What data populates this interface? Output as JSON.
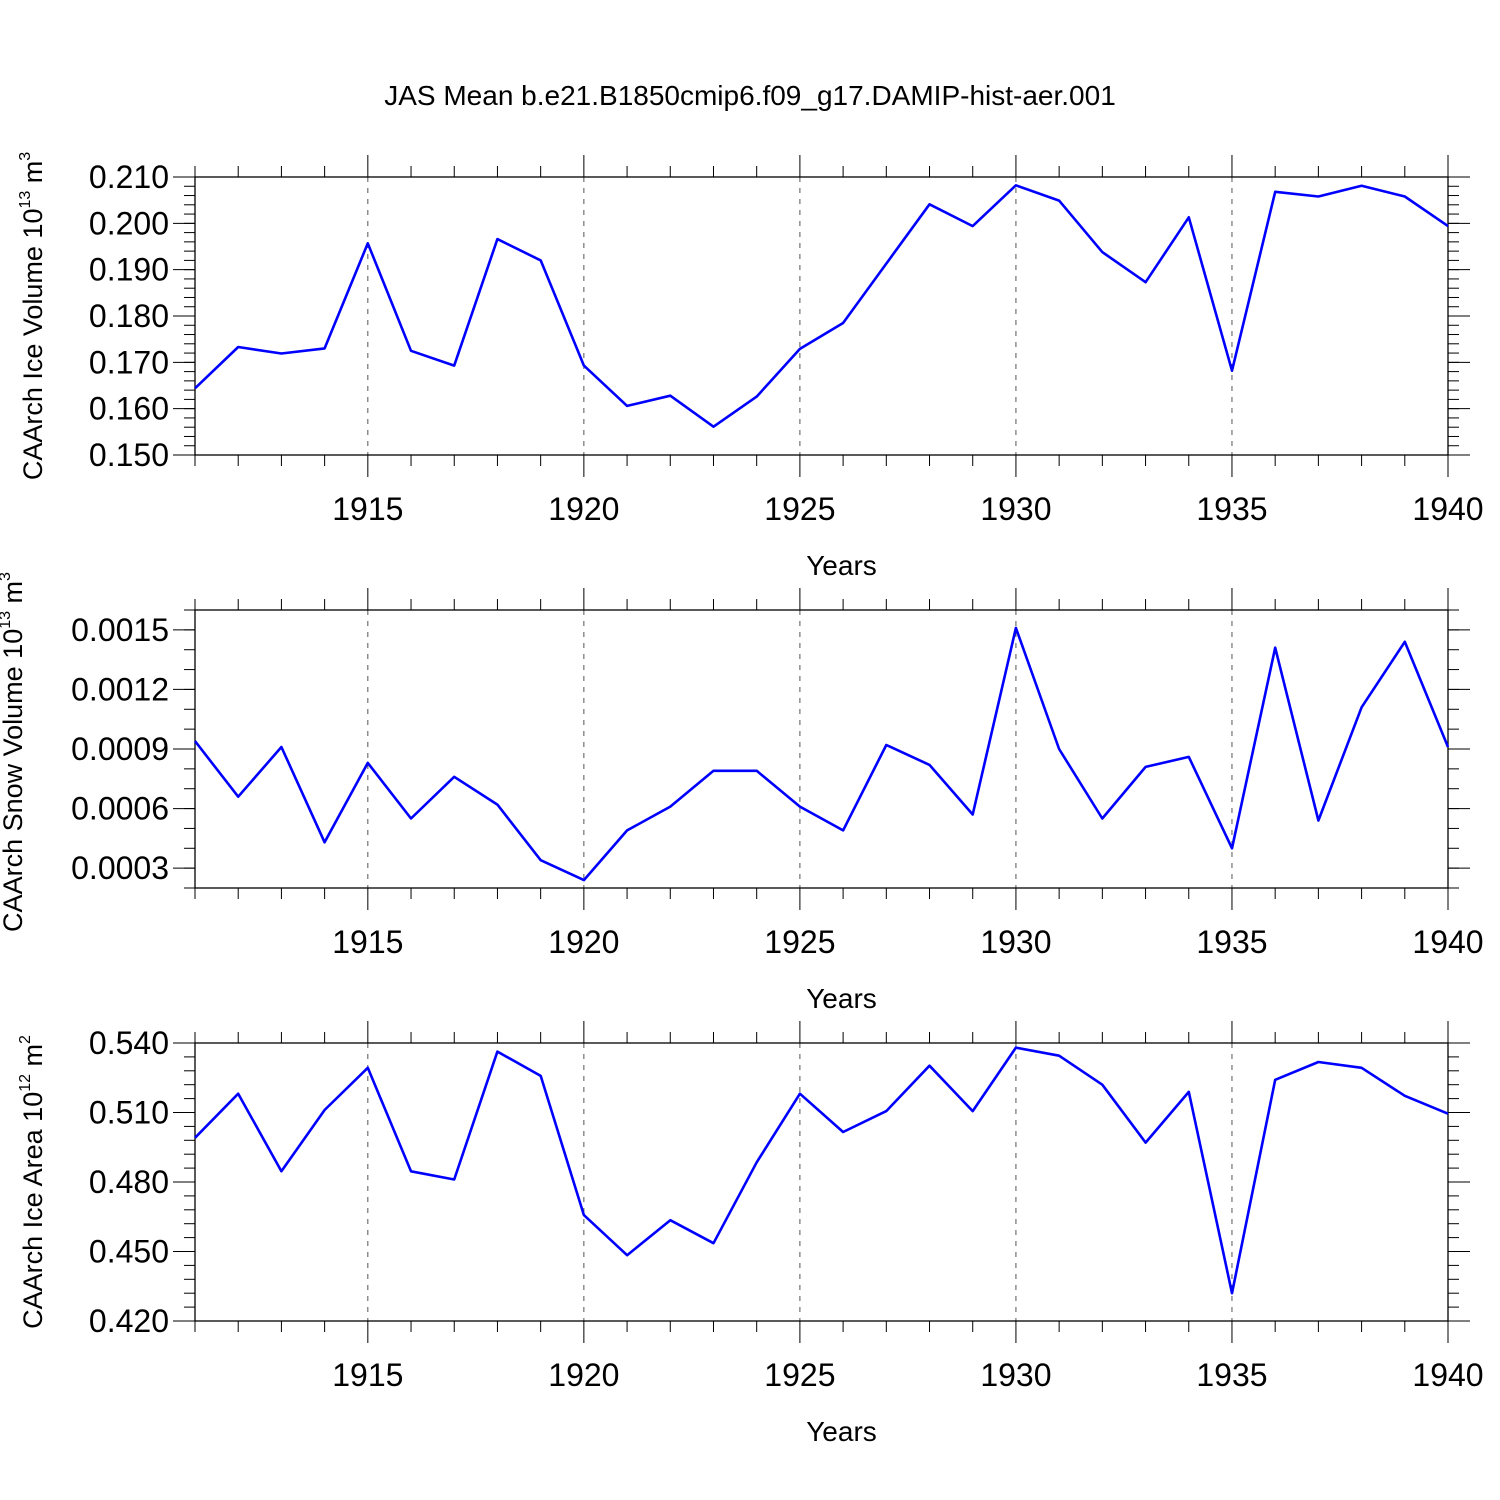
{
  "title": "JAS Mean b.e21.B1850cmip6.f09_g17.DAMIP-hist-aer.001",
  "chart_data": [
    {
      "type": "line",
      "title": "",
      "xlabel": "Years",
      "ylabel": "CAArch Ice Volume 10",
      "ylabel_exp": "13",
      "ylabel_unit": " m",
      "ylabel_unit_exp": "3",
      "xlim": [
        1911,
        1940
      ],
      "ylim": [
        0.15,
        0.21
      ],
      "x_ticks": [
        1915,
        1920,
        1925,
        1930,
        1935,
        1940
      ],
      "x_tick_labels": [
        "1915",
        "1920",
        "1925",
        "1930",
        "1935",
        "1940"
      ],
      "y_ticks": [
        0.15,
        0.16,
        0.17,
        0.18,
        0.19,
        0.2,
        0.21
      ],
      "y_tick_labels": [
        "0.150",
        "0.160",
        "0.170",
        "0.180",
        "0.190",
        "0.200",
        "0.210"
      ],
      "y_minor_step": 0.002,
      "grid": "vertical dashed at major x ticks",
      "color": "#0000ff",
      "x": [
        1911,
        1912,
        1913,
        1914,
        1915,
        1916,
        1917,
        1918,
        1919,
        1920,
        1921,
        1922,
        1923,
        1924,
        1925,
        1926,
        1927,
        1928,
        1929,
        1930,
        1931,
        1932,
        1933,
        1934,
        1935,
        1936,
        1937,
        1938,
        1939,
        1940
      ],
      "values": [
        0.1644,
        0.1733,
        0.1719,
        0.173,
        0.1957,
        0.1725,
        0.1693,
        0.1966,
        0.192,
        0.1693,
        0.1606,
        0.1628,
        0.1561,
        0.1626,
        0.1729,
        0.1785,
        0.1913,
        0.2041,
        0.1994,
        0.2082,
        0.2049,
        0.1938,
        0.1873,
        0.2013,
        0.1682,
        0.2068,
        0.2058,
        0.2081,
        0.2058,
        0.1994
      ]
    },
    {
      "type": "line",
      "title": "",
      "xlabel": "Years",
      "ylabel": "CAArch Snow Volume 10",
      "ylabel_exp": "13",
      "ylabel_unit": " m",
      "ylabel_unit_exp": "3",
      "xlim": [
        1911,
        1940
      ],
      "ylim": [
        0.0002,
        0.0016
      ],
      "x_ticks": [
        1915,
        1920,
        1925,
        1930,
        1935,
        1940
      ],
      "x_tick_labels": [
        "1915",
        "1920",
        "1925",
        "1930",
        "1935",
        "1940"
      ],
      "y_ticks": [
        0.0003,
        0.0006,
        0.0009,
        0.0012,
        0.0015
      ],
      "y_tick_labels": [
        "0.0003",
        "0.0006",
        "0.0009",
        "0.0012",
        "0.0015"
      ],
      "y_minor_step": 0.0001,
      "grid": "vertical dashed at major x ticks",
      "color": "#0000ff",
      "x": [
        1911,
        1912,
        1913,
        1914,
        1915,
        1916,
        1917,
        1918,
        1919,
        1920,
        1921,
        1922,
        1923,
        1924,
        1925,
        1926,
        1927,
        1928,
        1929,
        1930,
        1931,
        1932,
        1933,
        1934,
        1935,
        1936,
        1937,
        1938,
        1939,
        1940
      ],
      "values": [
        0.00094,
        0.00066,
        0.00091,
        0.00043,
        0.00083,
        0.00055,
        0.00076,
        0.00062,
        0.00034,
        0.00024,
        0.00049,
        0.00061,
        0.00079,
        0.00079,
        0.00061,
        0.00049,
        0.00092,
        0.00082,
        0.00057,
        0.00151,
        0.0009,
        0.00055,
        0.00081,
        0.00086,
        0.0004,
        0.00141,
        0.00054,
        0.00111,
        0.00144,
        0.00091
      ]
    },
    {
      "type": "line",
      "title": "",
      "xlabel": "Years",
      "ylabel": "CAArch Ice Area 10",
      "ylabel_exp": "12",
      "ylabel_unit": " m",
      "ylabel_unit_exp": "2",
      "xlim": [
        1911,
        1940
      ],
      "ylim": [
        0.42,
        0.54
      ],
      "x_ticks": [
        1915,
        1920,
        1925,
        1930,
        1935,
        1940
      ],
      "x_tick_labels": [
        "1915",
        "1920",
        "1925",
        "1930",
        "1935",
        "1940"
      ],
      "y_ticks": [
        0.42,
        0.45,
        0.48,
        0.51,
        0.54
      ],
      "y_tick_labels": [
        "0.420",
        "0.450",
        "0.480",
        "0.510",
        "0.540"
      ],
      "y_minor_step": 0.006,
      "grid": "vertical dashed at major x ticks",
      "color": "#0000ff",
      "x": [
        1911,
        1912,
        1913,
        1914,
        1915,
        1916,
        1917,
        1918,
        1919,
        1920,
        1921,
        1922,
        1923,
        1924,
        1925,
        1926,
        1927,
        1928,
        1929,
        1930,
        1931,
        1932,
        1933,
        1934,
        1935,
        1936,
        1937,
        1938,
        1939,
        1940
      ],
      "values": [
        0.4991,
        0.5181,
        0.4846,
        0.5111,
        0.5293,
        0.4846,
        0.4811,
        0.5363,
        0.5258,
        0.4657,
        0.4484,
        0.4635,
        0.4536,
        0.4885,
        0.5181,
        0.5016,
        0.5106,
        0.5302,
        0.5106,
        0.538,
        0.5345,
        0.522,
        0.497,
        0.5189,
        0.432,
        0.5241,
        0.5318,
        0.5293,
        0.5172,
        0.5095
      ]
    }
  ]
}
